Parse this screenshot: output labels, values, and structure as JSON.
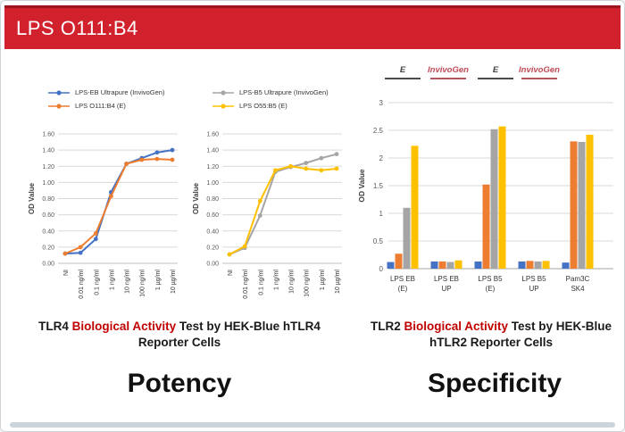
{
  "header": {
    "title": "LPS O111:B4",
    "background": "#d1212c",
    "top_edge_color": "#9d151e",
    "text_color": "#ffffff"
  },
  "sections": {
    "potency_label": "Potency",
    "specificity_label": "Specificity"
  },
  "captions": [
    {
      "prefix": "TLR4 ",
      "highlight": "Biological Activity",
      "suffix": " Test by HEK-Blue hTLR4 Reporter Cells",
      "highlight_color": "#c00000"
    },
    {
      "prefix": "TLR2 ",
      "highlight": "Biological Activity",
      "suffix": " Test by HEK-Blue hTLR2 Reporter Cells",
      "highlight_color": "#c00000"
    }
  ],
  "chart_data": [
    {
      "type": "line",
      "title": "",
      "ylabel": "OD Value",
      "xlabel": "",
      "ylim": [
        0,
        1.6
      ],
      "grid": true,
      "legend_position": "top",
      "yticks": [
        [
          0,
          "0.00"
        ],
        [
          0.2,
          "0.20"
        ],
        [
          0.4,
          "0.40"
        ],
        [
          0.6,
          "0.60"
        ],
        [
          0.8,
          "0.80"
        ],
        [
          1.0,
          "1.00"
        ],
        [
          1.2,
          "1.20"
        ],
        [
          1.4,
          "1.40"
        ],
        [
          1.6,
          "1.60"
        ]
      ],
      "x": [
        "NI",
        "0.01 ng/ml",
        "0.1 ng/ml",
        "1 ng/ml",
        "10 ng/ml",
        "100 ng/ml",
        "1 µg/ml",
        "10 µg/ml"
      ],
      "series": [
        {
          "name": "LPS-EB Ultrapure (InvivoGen)",
          "color": "#4472c4",
          "values": [
            0.12,
            0.13,
            0.3,
            0.88,
            1.23,
            1.3,
            1.37,
            1.4
          ]
        },
        {
          "name": "LPS O111:B4 (E)",
          "color": "#ed7d31",
          "values": [
            0.12,
            0.2,
            0.37,
            0.83,
            1.23,
            1.28,
            1.29,
            1.28
          ]
        }
      ]
    },
    {
      "type": "line",
      "title": "",
      "ylabel": "OD Value",
      "xlabel": "",
      "ylim": [
        0,
        1.6
      ],
      "grid": true,
      "legend_position": "top",
      "yticks": [
        [
          0,
          "0.00"
        ],
        [
          0.2,
          "0.20"
        ],
        [
          0.4,
          "0.40"
        ],
        [
          0.6,
          "0.60"
        ],
        [
          0.8,
          "0.80"
        ],
        [
          1.0,
          "1.00"
        ],
        [
          1.2,
          "1.20"
        ],
        [
          1.4,
          "1.40"
        ],
        [
          1.6,
          "1.60"
        ]
      ],
      "x": [
        "NI",
        "0.01 ng/ml",
        "0.1 ng/ml",
        "1 ng/ml",
        "10 ng/ml",
        "100 ng/ml",
        "1 µg/ml",
        "10 µg/ml"
      ],
      "series": [
        {
          "name": "LPS-B5 Ultrapure (InvivoGen)",
          "color": "#a5a5a5",
          "values": [
            0.11,
            0.19,
            0.59,
            1.13,
            1.19,
            1.24,
            1.3,
            1.35
          ]
        },
        {
          "name": "LPS O55:B5 (E)",
          "color": "#ffc000",
          "values": [
            0.11,
            0.21,
            0.77,
            1.15,
            1.2,
            1.17,
            1.15,
            1.17
          ]
        }
      ]
    },
    {
      "type": "bar",
      "title": "",
      "ylabel": "OD Value",
      "xlabel": "",
      "ylim": [
        0,
        3
      ],
      "grid": true,
      "yticks": [
        [
          0,
          "0"
        ],
        [
          0.5,
          "0.5"
        ],
        [
          1,
          "1"
        ],
        [
          1.5,
          "1.5"
        ],
        [
          2,
          "2"
        ],
        [
          2.5,
          "2.5"
        ],
        [
          3,
          "3"
        ]
      ],
      "categories": [
        [
          "LPS EB",
          "(E)"
        ],
        [
          "LPS EB",
          "UP"
        ],
        [
          "LPS B5",
          "(E)"
        ],
        [
          "LPS B5",
          "UP"
        ],
        [
          "Pam3C",
          "SK4"
        ]
      ],
      "series": [
        {
          "name": "blue",
          "color": "#4472c4",
          "values": [
            0.12,
            0.13,
            0.13,
            0.13,
            0.11
          ]
        },
        {
          "name": "orange",
          "color": "#ed7d31",
          "values": [
            0.27,
            0.13,
            1.52,
            0.14,
            2.3
          ]
        },
        {
          "name": "gray",
          "color": "#a5a5a5",
          "values": [
            1.1,
            0.12,
            2.52,
            0.13,
            2.29
          ]
        },
        {
          "name": "yellow",
          "color": "#ffc000",
          "values": [
            2.22,
            0.15,
            2.57,
            0.14,
            2.42
          ]
        }
      ],
      "annotations": [
        {
          "label": "E",
          "color": "#404040",
          "underline": "#4a4a4a"
        },
        {
          "label": "InvivoGen",
          "color": "#bf4a55",
          "underline": "#b3565e"
        },
        {
          "label": "E",
          "color": "#404040",
          "underline": "#4a4a4a"
        },
        {
          "label": "InvivoGen",
          "color": "#bf4a55",
          "underline": "#b3565e"
        }
      ]
    }
  ]
}
